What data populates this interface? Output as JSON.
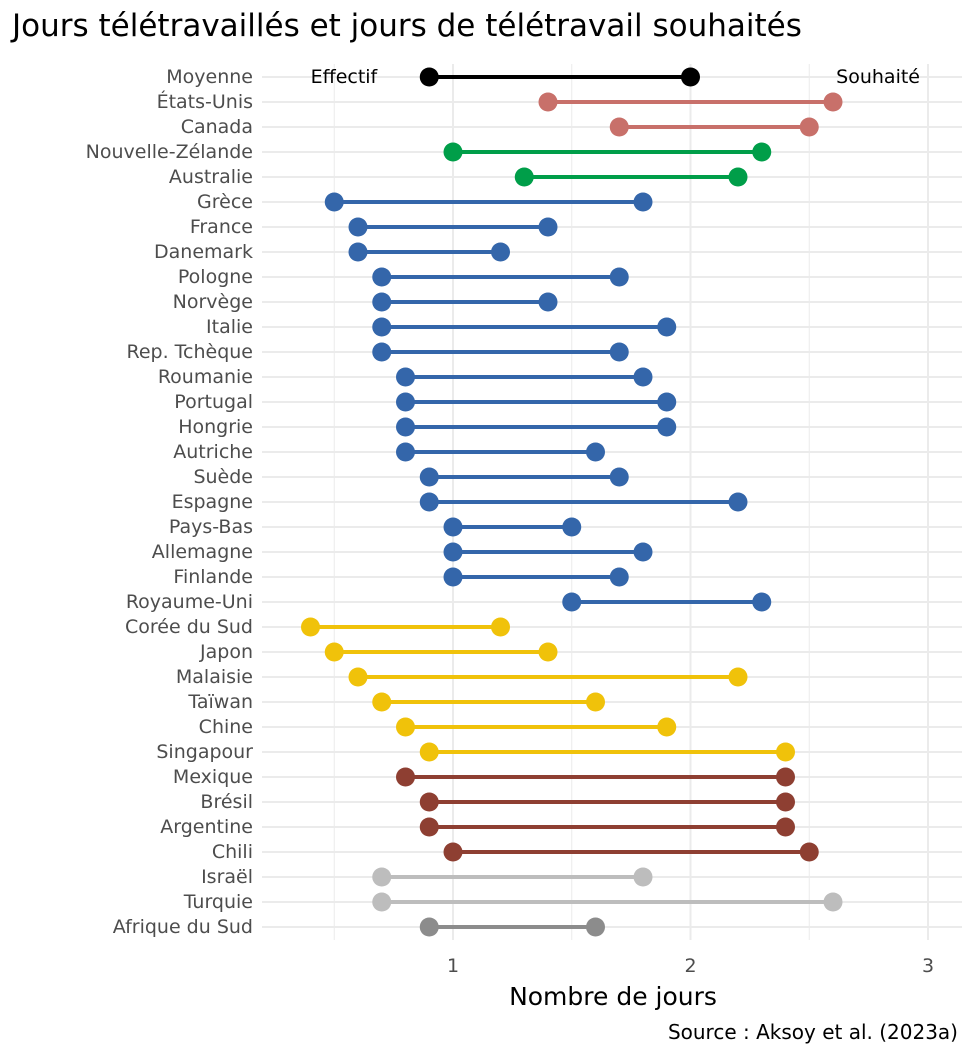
{
  "chart_data": {
    "type": "dumbbell",
    "title": "Jours télétravaillés et jours de télétravail souhaités",
    "xlabel": "Nombre de jours",
    "ylabel": "",
    "xlim": [
      0.3,
      3.05
    ],
    "x_ticks": [
      1,
      2,
      3
    ],
    "grid": true,
    "series": [
      {
        "name": "Effectif",
        "key": "effectif"
      },
      {
        "name": "Souhaité",
        "key": "souhaite"
      }
    ],
    "categories": [
      {
        "label": "Moyenne",
        "effectif": 0.9,
        "souhaite": 2.0,
        "color": "#000000"
      },
      {
        "label": "États-Unis",
        "effectif": 1.4,
        "souhaite": 2.6,
        "color": "#C8706A"
      },
      {
        "label": "Canada",
        "effectif": 1.7,
        "souhaite": 2.5,
        "color": "#C8706A"
      },
      {
        "label": "Nouvelle-Zélande",
        "effectif": 1.0,
        "souhaite": 2.3,
        "color": "#009E49"
      },
      {
        "label": "Australie",
        "effectif": 1.3,
        "souhaite": 2.2,
        "color": "#009E49"
      },
      {
        "label": "Grèce",
        "effectif": 0.5,
        "souhaite": 1.8,
        "color": "#3466AA"
      },
      {
        "label": "France",
        "effectif": 0.6,
        "souhaite": 1.4,
        "color": "#3466AA"
      },
      {
        "label": "Danemark",
        "effectif": 0.6,
        "souhaite": 1.2,
        "color": "#3466AA"
      },
      {
        "label": "Pologne",
        "effectif": 0.7,
        "souhaite": 1.7,
        "color": "#3466AA"
      },
      {
        "label": "Norvège",
        "effectif": 0.7,
        "souhaite": 1.4,
        "color": "#3466AA"
      },
      {
        "label": "Italie",
        "effectif": 0.7,
        "souhaite": 1.9,
        "color": "#3466AA"
      },
      {
        "label": "Rep. Tchèque",
        "effectif": 0.7,
        "souhaite": 1.7,
        "color": "#3466AA"
      },
      {
        "label": "Roumanie",
        "effectif": 0.8,
        "souhaite": 1.8,
        "color": "#3466AA"
      },
      {
        "label": "Portugal",
        "effectif": 0.8,
        "souhaite": 1.9,
        "color": "#3466AA"
      },
      {
        "label": "Hongrie",
        "effectif": 0.8,
        "souhaite": 1.9,
        "color": "#3466AA"
      },
      {
        "label": "Autriche",
        "effectif": 0.8,
        "souhaite": 1.6,
        "color": "#3466AA"
      },
      {
        "label": "Suède",
        "effectif": 0.9,
        "souhaite": 1.7,
        "color": "#3466AA"
      },
      {
        "label": "Espagne",
        "effectif": 0.9,
        "souhaite": 2.2,
        "color": "#3466AA"
      },
      {
        "label": "Pays-Bas",
        "effectif": 1.0,
        "souhaite": 1.5,
        "color": "#3466AA"
      },
      {
        "label": "Allemagne",
        "effectif": 1.0,
        "souhaite": 1.8,
        "color": "#3466AA"
      },
      {
        "label": "Finlande",
        "effectif": 1.0,
        "souhaite": 1.7,
        "color": "#3466AA"
      },
      {
        "label": "Royaume-Uni",
        "effectif": 1.5,
        "souhaite": 2.3,
        "color": "#3466AA"
      },
      {
        "label": "Corée du Sud",
        "effectif": 0.4,
        "souhaite": 1.2,
        "color": "#F0C20A"
      },
      {
        "label": "Japon",
        "effectif": 0.5,
        "souhaite": 1.4,
        "color": "#F0C20A"
      },
      {
        "label": "Malaisie",
        "effectif": 0.6,
        "souhaite": 2.2,
        "color": "#F0C20A"
      },
      {
        "label": "Taïwan",
        "effectif": 0.7,
        "souhaite": 1.6,
        "color": "#F0C20A"
      },
      {
        "label": "Chine",
        "effectif": 0.8,
        "souhaite": 1.9,
        "color": "#F0C20A"
      },
      {
        "label": "Singapour",
        "effectif": 0.9,
        "souhaite": 2.4,
        "color": "#F0C20A"
      },
      {
        "label": "Mexique",
        "effectif": 0.8,
        "souhaite": 2.4,
        "color": "#8E3F32"
      },
      {
        "label": "Brésil",
        "effectif": 0.9,
        "souhaite": 2.4,
        "color": "#8E3F32"
      },
      {
        "label": "Argentine",
        "effectif": 0.9,
        "souhaite": 2.4,
        "color": "#8E3F32"
      },
      {
        "label": "Chili",
        "effectif": 1.0,
        "souhaite": 2.5,
        "color": "#8E3F32"
      },
      {
        "label": "Israël",
        "effectif": 0.7,
        "souhaite": 1.8,
        "color": "#BDBDBD"
      },
      {
        "label": "Turquie",
        "effectif": 0.7,
        "souhaite": 2.6,
        "color": "#BDBDBD"
      },
      {
        "label": "Afrique du Sud",
        "effectif": 0.9,
        "souhaite": 1.6,
        "color": "#8C8C8C"
      }
    ],
    "source": "Source : Aksoy et al. (2023a)"
  }
}
